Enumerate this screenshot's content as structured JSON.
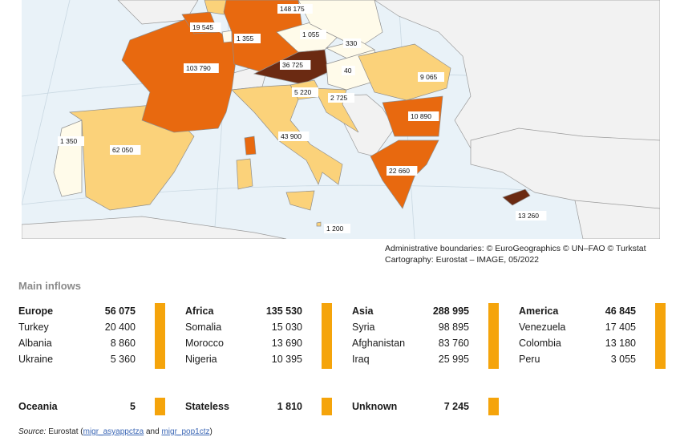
{
  "map": {
    "colors": {
      "sea": "#e9f2f8",
      "land_other": "#f2f2f2",
      "border": "#9a9a9a",
      "class_lowest": "#fffbea",
      "class_low": "#fbd27a",
      "class_high": "#e8690f",
      "class_highest": "#6b2a12"
    },
    "labels": [
      {
        "country": "Belgium",
        "value": "19 545"
      },
      {
        "country": "Germany",
        "value": "148 175"
      },
      {
        "country": "Luxembourg",
        "value": "1 355"
      },
      {
        "country": "Czechia",
        "value": "1 055"
      },
      {
        "country": "Slovakia",
        "value": "330"
      },
      {
        "country": "Austria",
        "value": "36 725"
      },
      {
        "country": "Hungary",
        "value": "40"
      },
      {
        "country": "France",
        "value": "103 790"
      },
      {
        "country": "Romania",
        "value": "9 065"
      },
      {
        "country": "Slovenia",
        "value": "5 220"
      },
      {
        "country": "Croatia",
        "value": "2 725"
      },
      {
        "country": "Bulgaria",
        "value": "10 890"
      },
      {
        "country": "Italy",
        "value": "43 900"
      },
      {
        "country": "Portugal",
        "value": "1 350"
      },
      {
        "country": "Spain",
        "value": "62 050"
      },
      {
        "country": "Greece",
        "value": "22 660"
      },
      {
        "country": "Cyprus",
        "value": "13 260"
      },
      {
        "country": "Malta",
        "value": "1 200"
      }
    ]
  },
  "credits": {
    "line1": "Administrative boundaries: © EuroGeographics © UN–FAO © Turkstat",
    "line2": "Cartography: Eurostat – IMAGE, 05/2022"
  },
  "inflows": {
    "title": "Main inflows",
    "groups": [
      {
        "name": "Europe",
        "total": "56 075",
        "items": [
          {
            "name": "Turkey",
            "value": "20 400"
          },
          {
            "name": "Albania",
            "value": "8 860"
          },
          {
            "name": "Ukraine",
            "value": "5 360"
          }
        ]
      },
      {
        "name": "Africa",
        "total": "135 530",
        "items": [
          {
            "name": "Somalia",
            "value": "15 030"
          },
          {
            "name": "Morocco",
            "value": "13 690"
          },
          {
            "name": "Nigeria",
            "value": "10 395"
          }
        ]
      },
      {
        "name": "Asia",
        "total": "288 995",
        "items": [
          {
            "name": "Syria",
            "value": "98 895"
          },
          {
            "name": "Afghanistan",
            "value": "83 760"
          },
          {
            "name": "Iraq",
            "value": "25 995"
          }
        ]
      },
      {
        "name": "America",
        "total": "46 845",
        "items": [
          {
            "name": "Venezuela",
            "value": "17 405"
          },
          {
            "name": "Colombia",
            "value": "13 180"
          },
          {
            "name": "Peru",
            "value": "3 055"
          }
        ]
      }
    ],
    "others": [
      {
        "name": "Oceania",
        "value": "5"
      },
      {
        "name": "Stateless",
        "value": "1 810"
      },
      {
        "name": "Unknown",
        "value": "7 245"
      }
    ],
    "bar_color": "#f5a40b"
  },
  "source": {
    "label": "Source:",
    "text": "Eurostat (",
    "link1": "migr_asyappctza",
    "and": " and ",
    "link2": "migr_pop1ctz",
    "close": ")"
  }
}
